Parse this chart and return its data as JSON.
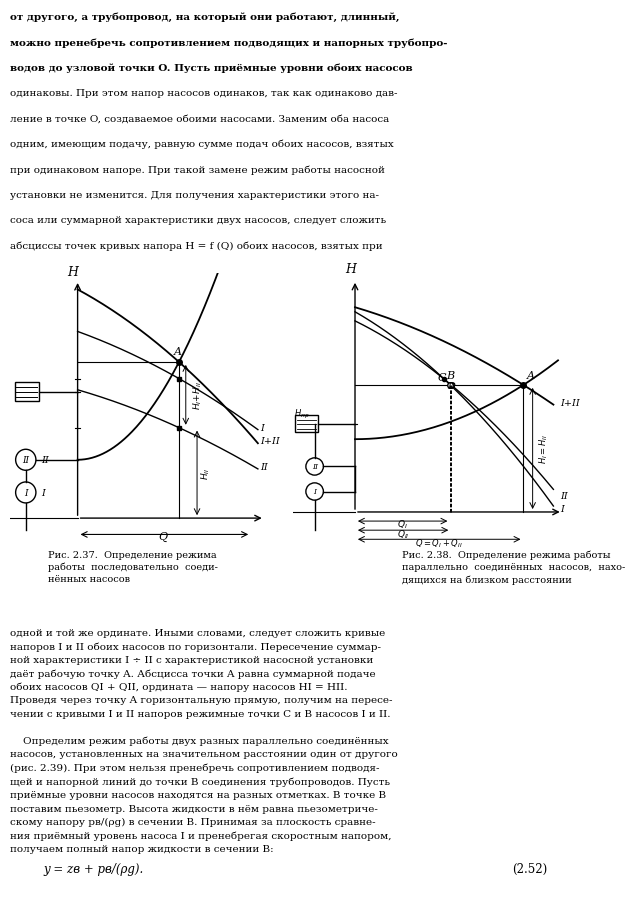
{
  "page_bg": "#ffffff",
  "text_color": "#000000",
  "top_text": [
    "от другого, а трубопровод, на который они работают, длинный,",
    "можно пренебречь сопротивлением подводящих и напорных трубопро-",
    "водов до узловой точки O. Пусть приёмные уровни обоих насосов",
    "одинаковы. При этом напор насосов одинаков, так как одинаково дав-",
    "ление в точке O, создаваемое обоими насосами. Заменим оба насоса",
    "одним, имеющим подачу, равную сумме подач обоих насосов, взятых",
    "при одинаковом напоре. При такой замене режим работы насосной",
    "установки не изменится. Для получения характеристики этого на-",
    "соса или суммарной характеристики двух насосов, следует сложить",
    "абсциссы точек кривых напора H = f (Q) обоих насосов, взятых при"
  ],
  "caption_left": "Рис. 2.37.  Определение режима\nработы  последовательно  соеди-\nнённых насосов",
  "caption_right": "Рис. 2.38.  Определение режима работы\nпараллельно  соединённых  насосов,  нахо-\nдящихся на близком расстоянии",
  "bottom_text": [
    "одной и той же ординате. Иными словами, следует сложить кривые",
    "напоров I и II обоих насосов по горизонтали. Пересечение суммар-",
    "ной характеристики I ÷ II с характеристикой насосной установки",
    "даёт рабочую точку A. Абсцисса точки A равна суммарной подаче",
    "обоих насосов QІ + QІІ, ордината — напору насосов HІ = HІІ.",
    "Проведя через точку A горизонтальную прямую, получим на пересе-",
    "чении с кривыми I и II напоров режимные точки C и B насосов I и II."
  ],
  "bottom_text2": [
    "    Определим режим работы двух разных параллельно соединённых",
    "насосов, установленных на значительном расстоянии один от другого",
    "(рис. 2.39). При этом нельзя пренебречь сопротивлением подводя-",
    "щей и напорной линий до точки B соединения трубопроводов. Пусть",
    "приёмные уровни насосов находятся на разных отметках. В точке B",
    "поставим пьезометр. Высота жидкости в нём равна пьезометриче-",
    "скому напору pв/(ρg) в сечении B. Принимая за плоскость сравне-",
    "ния приёмный уровень насоса I и пренебрегая скоростным напором,",
    "получаем полный напор жидкости в сечении B:"
  ],
  "equation": "y = zв + pв/(ρg).",
  "equation_number": "(2.52)"
}
